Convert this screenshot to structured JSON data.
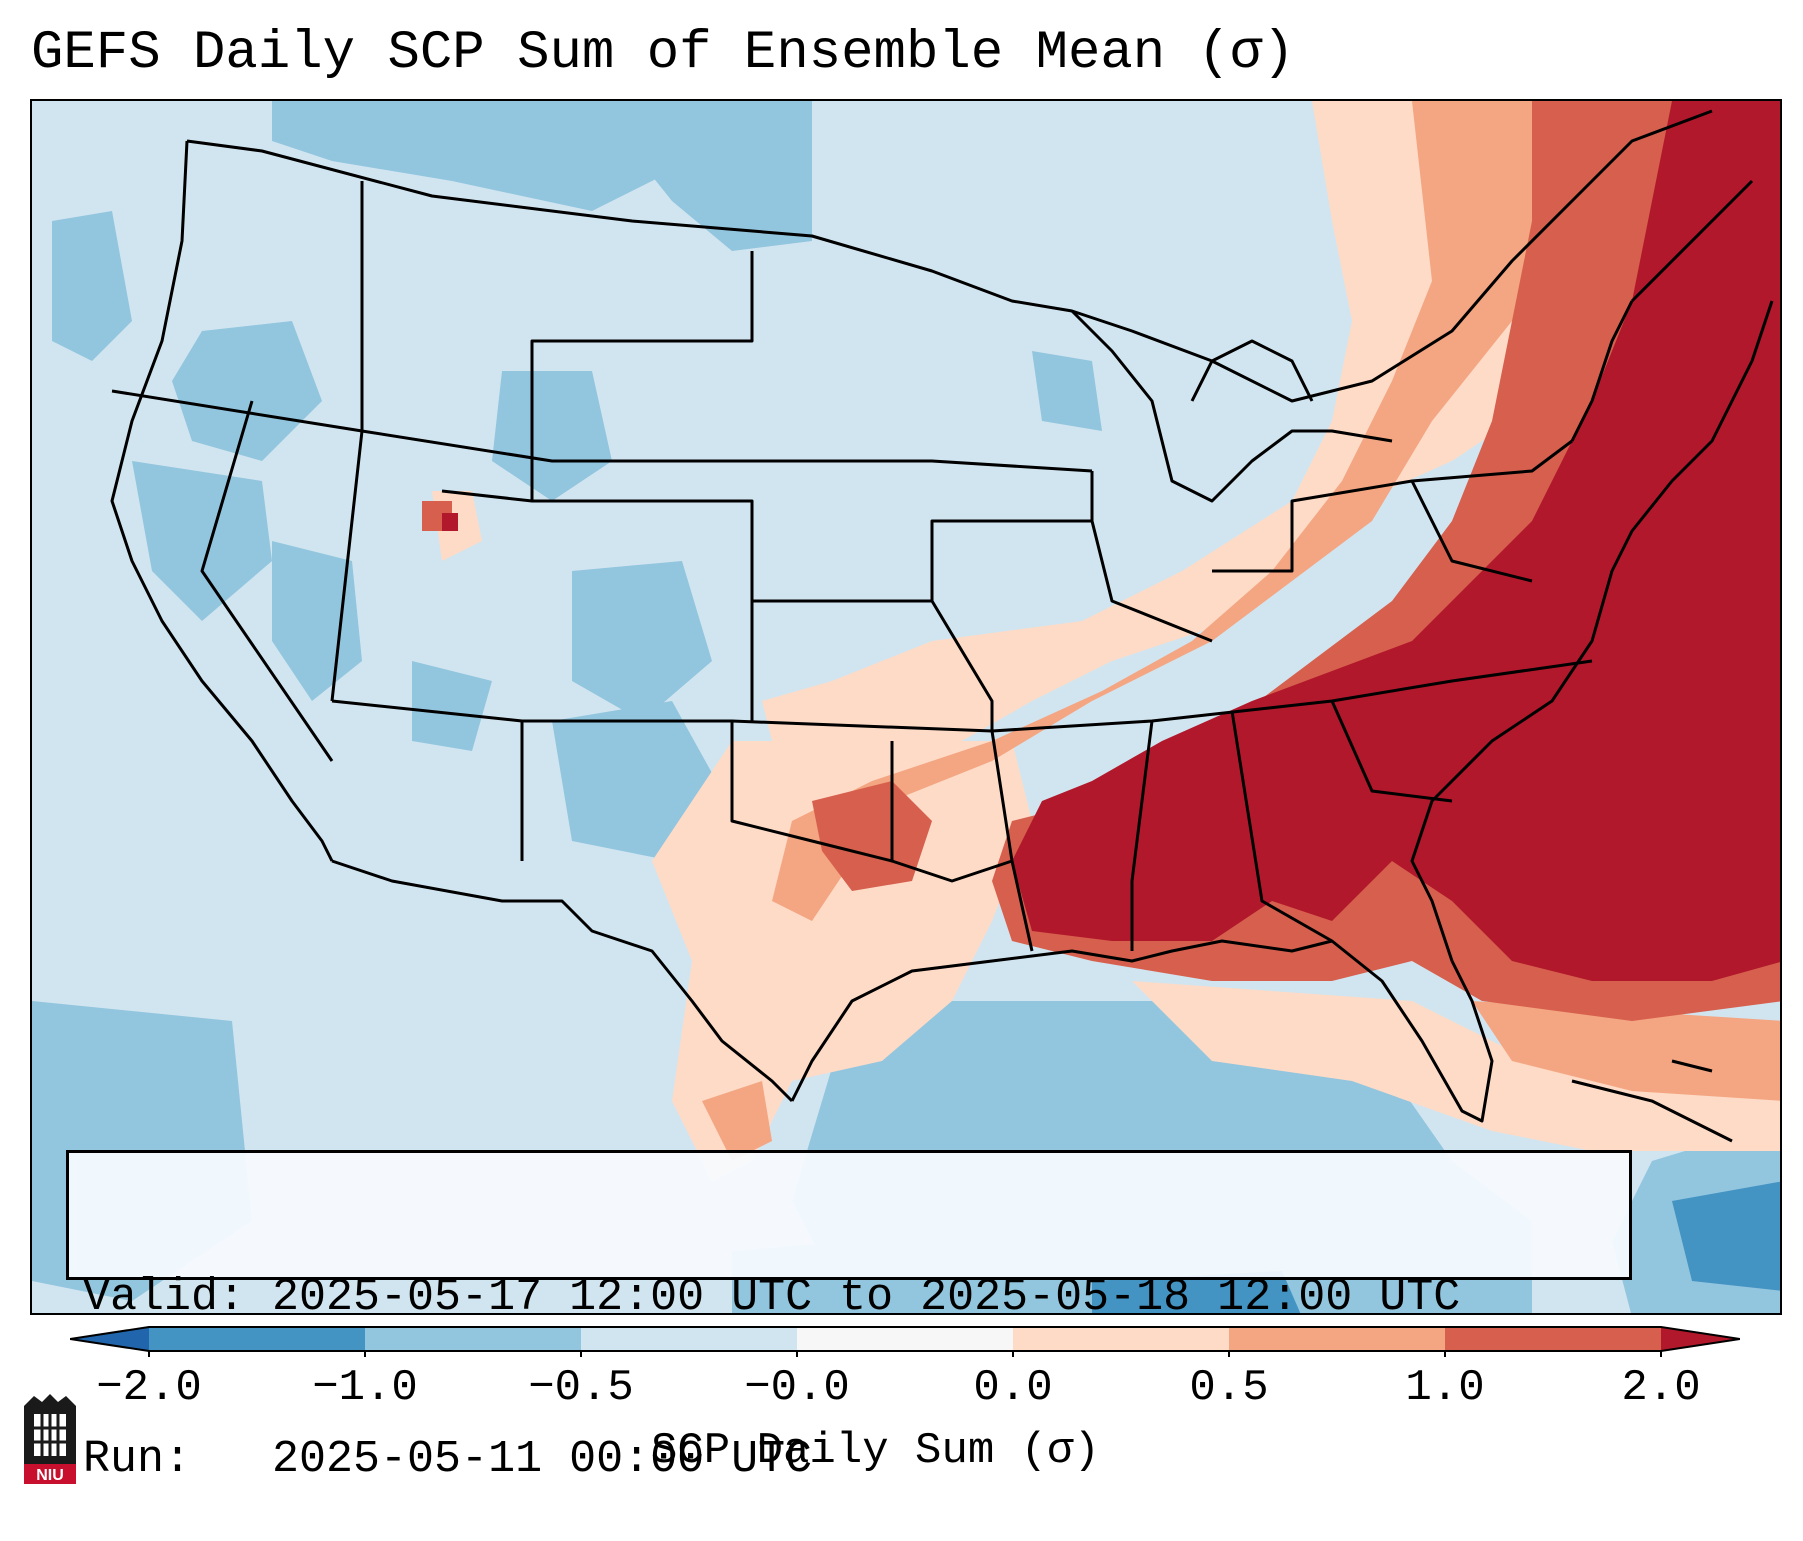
{
  "title": "GEFS Daily SCP Sum of Ensemble Mean (σ)",
  "info": {
    "valid_line": "Valid: 2025-05-17 12:00 UTC to 2025-05-18 12:00 UTC",
    "run_line": "Run:   2025-05-11 00:00 UTC"
  },
  "colorbar": {
    "label": "SCP Daily Sum (σ)",
    "ticks": [
      "−2.0",
      "−1.0",
      "−0.5",
      "−0.0",
      "0.0",
      "0.5",
      "1.0",
      "2.0"
    ],
    "colors": {
      "under": "#2166ac",
      "lt_m1": "#4393c3",
      "m1_m05": "#92c5de",
      "m05_0": "#d1e5f0",
      "zero": "#f7f7f7",
      "p0_05": "#fddbc7",
      "p05_1": "#f4a582",
      "p1_2": "#d6604d",
      "over": "#b2182b"
    }
  },
  "map": {
    "region": "Contiguous United States",
    "field": "GEFS ensemble mean SCP daily sum anomaly",
    "highlight": "Strong positive anomalies (≥2.0 σ) over the Southeast US and western Atlantic"
  },
  "logo": {
    "text": "NIU"
  }
}
